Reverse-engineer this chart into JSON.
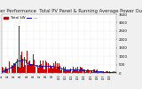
{
  "title": "Solar PV/Inverter Performance  Total PV Panel & Running Average Power Output",
  "legend_label": "Total kW",
  "legend_avg": "----",
  "bg_color": "#f0f0f0",
  "plot_bg": "#ffffff",
  "bar_color": "#cc0000",
  "line_color": "#0000bb",
  "grid_color": "#aaaaaa",
  "ymax": 3500,
  "yticks": [
    0,
    500,
    1000,
    1500,
    2000,
    2500,
    3000,
    3500
  ],
  "title_fontsize": 3.8,
  "axis_fontsize": 2.8,
  "legend_fontsize": 2.8,
  "n": 450
}
